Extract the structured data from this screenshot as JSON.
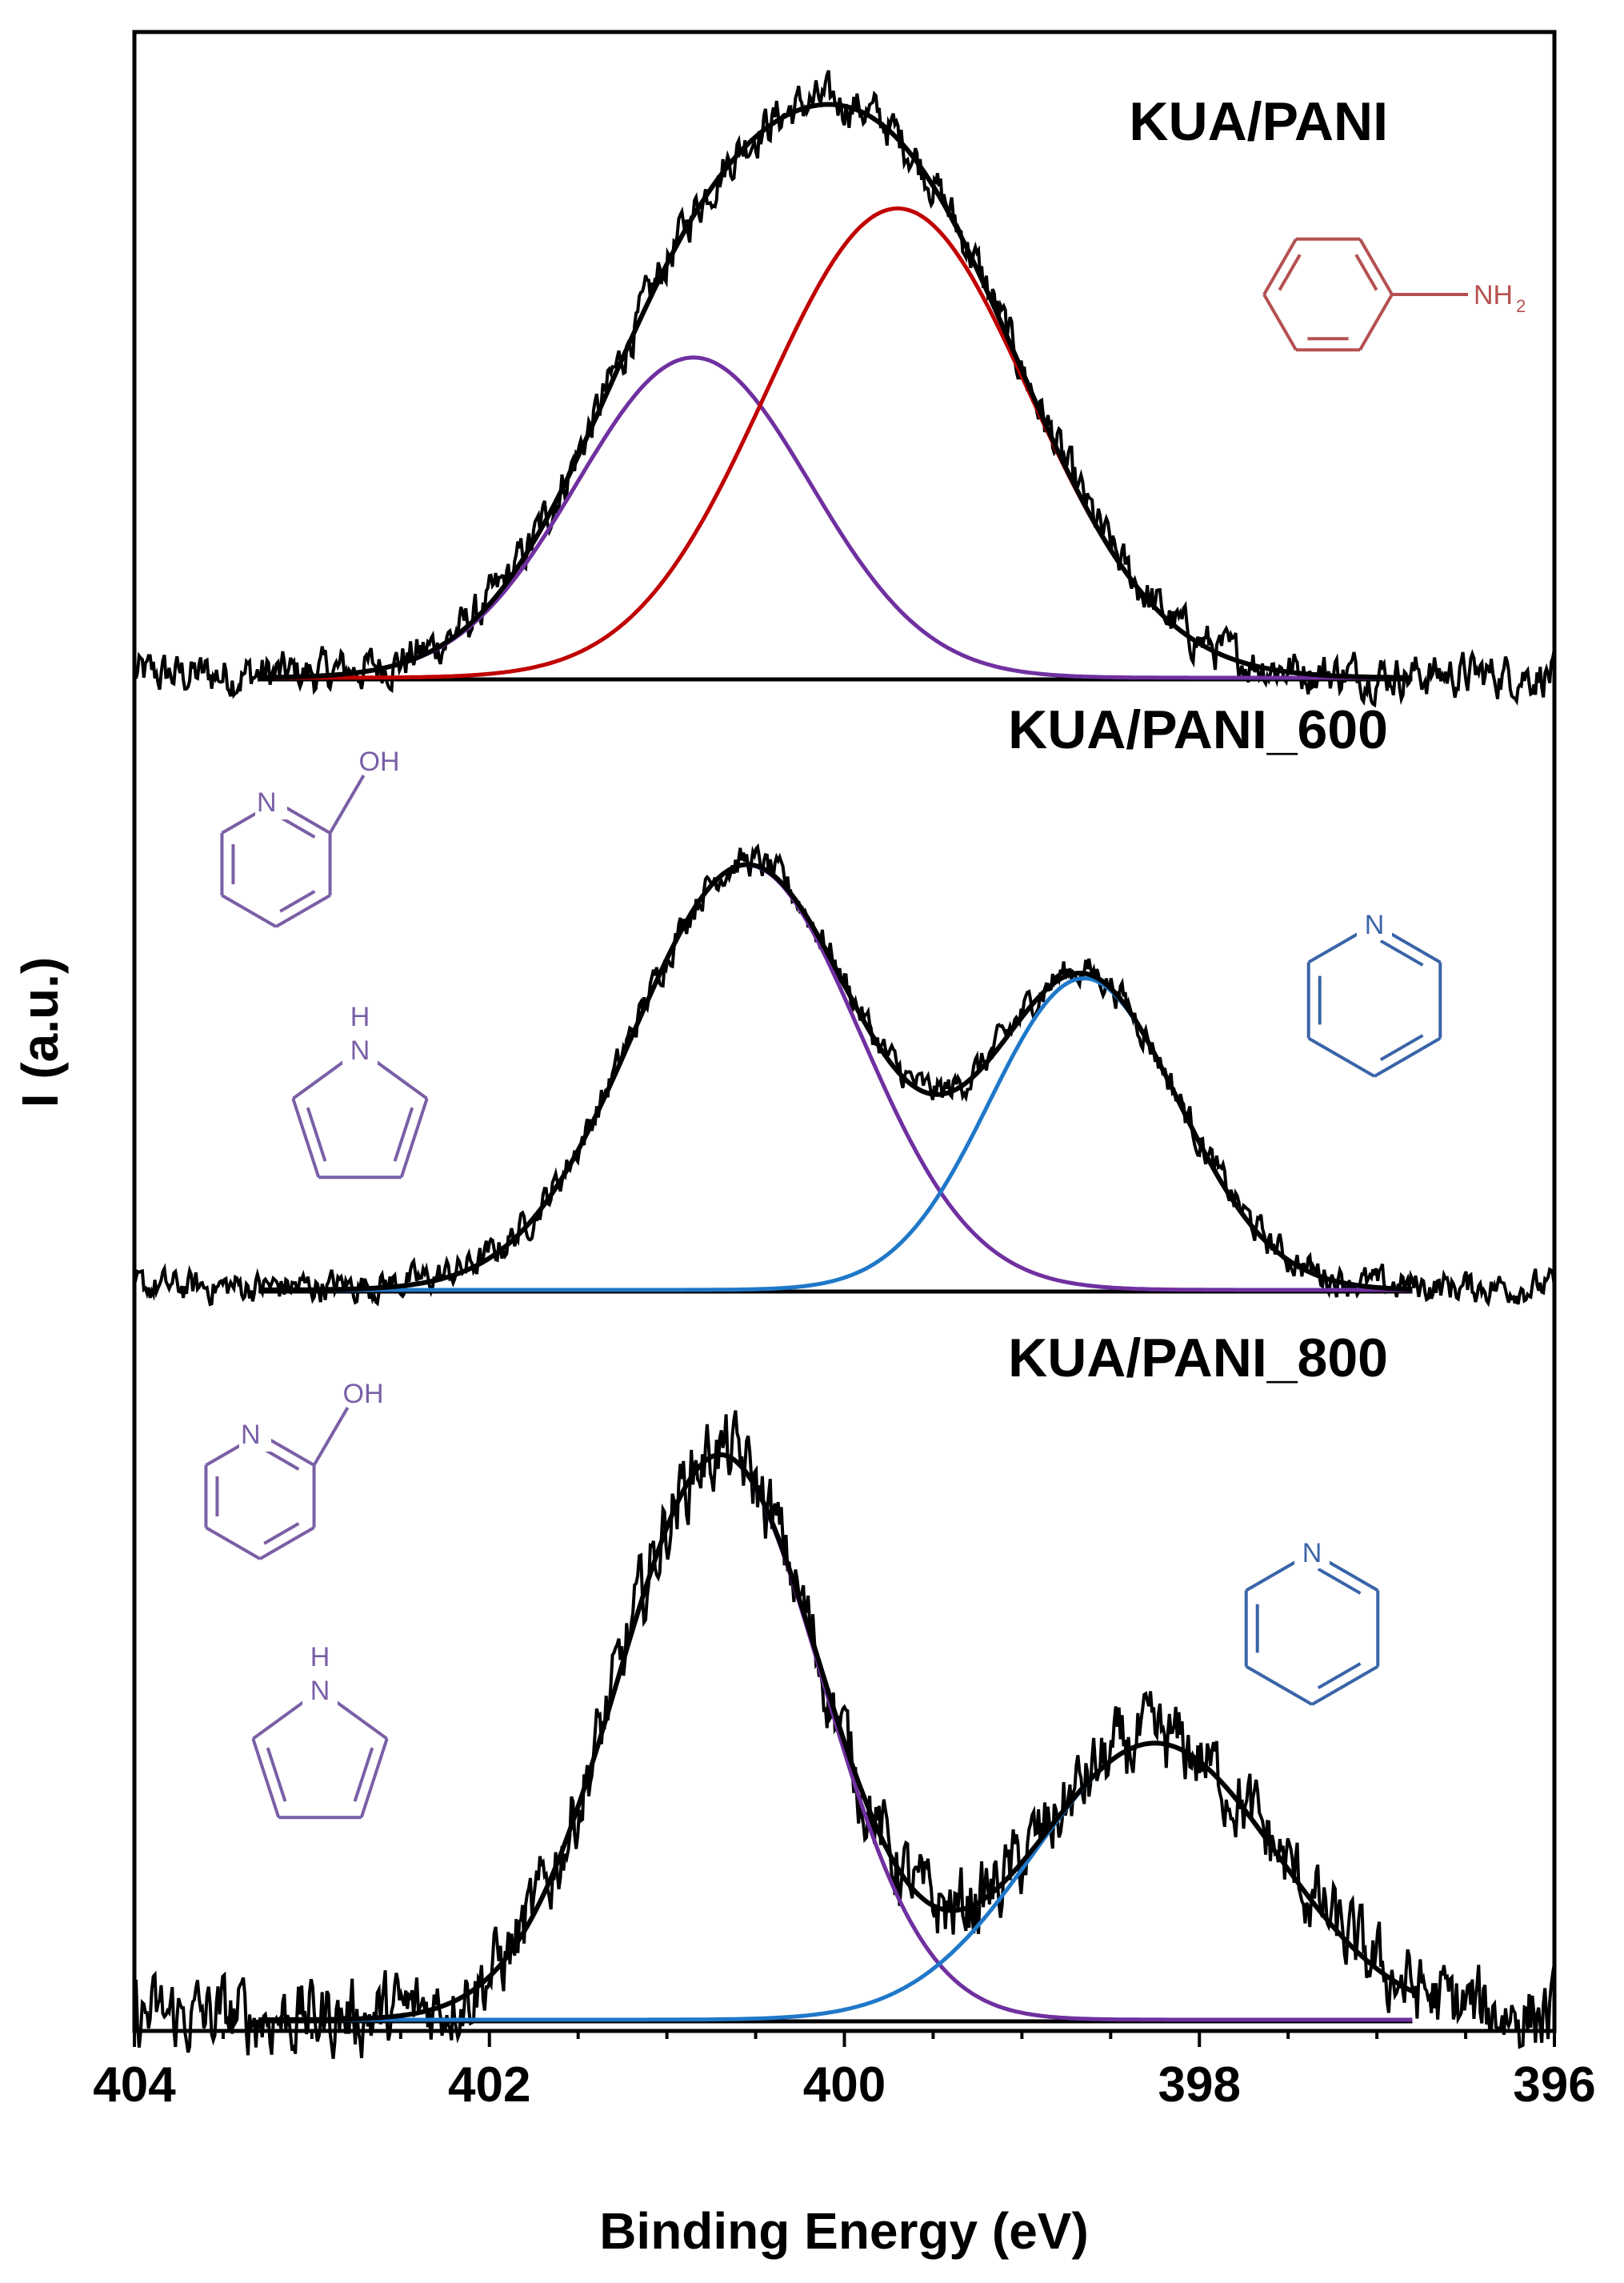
{
  "chart_data": {
    "type": "line",
    "xlabel": "Binding Energy (eV)",
    "ylabel": "I (a.u.)",
    "xlim": [
      404,
      396
    ],
    "x_ticks": [
      "404",
      "402",
      "400",
      "398",
      "396"
    ],
    "colors": {
      "raw": "#000000",
      "envelope": "#000000",
      "purple": "#7030a0",
      "red": "#c00000",
      "blue": "#1f78c8",
      "mol_red": "#b55050",
      "mol_purple": "#7a5fa6",
      "mol_blue": "#3a64a8"
    },
    "panels": [
      {
        "title": "KUA/PANI",
        "components": [
          {
            "name": "component 1",
            "color": "purple",
            "center": 400.85,
            "fwhm": 1.55,
            "height": 0.58
          },
          {
            "name": "component 2",
            "color": "red",
            "center": 399.7,
            "fwhm": 1.75,
            "height": 0.85
          }
        ],
        "raw_noise": 0.035,
        "molecules": [
          {
            "type": "aniline",
            "color": "mol_red",
            "label": "NH",
            "subscript": "2"
          }
        ]
      },
      {
        "title": "KUA/PANI_600",
        "components": [
          {
            "name": "component 1",
            "color": "purple",
            "center": 400.55,
            "fwhm": 1.5,
            "height": 0.9
          },
          {
            "name": "component 2",
            "color": "blue",
            "center": 398.65,
            "fwhm": 1.25,
            "height": 0.66
          }
        ],
        "raw_noise": 0.03,
        "molecules": [
          {
            "type": "hydroxypyridine",
            "color": "mol_purple",
            "n_label": "N",
            "oh_label": "OH"
          },
          {
            "type": "pyrrole",
            "color": "mol_purple",
            "h_label": "H",
            "n_label": "N"
          },
          {
            "type": "pyridine",
            "color": "mol_blue",
            "n_label": "N"
          }
        ]
      },
      {
        "title": "KUA/PANI_800",
        "components": [
          {
            "name": "component 1",
            "color": "purple",
            "center": 400.7,
            "fwhm": 1.35,
            "height": 0.98
          },
          {
            "name": "component 2",
            "color": "blue",
            "center": 398.25,
            "fwhm": 1.6,
            "height": 0.48
          }
        ],
        "raw_noise": 0.06,
        "molecules": [
          {
            "type": "hydroxypyridine",
            "color": "mol_purple",
            "n_label": "N",
            "oh_label": "OH"
          },
          {
            "type": "pyrrole",
            "color": "mol_purple",
            "h_label": "H",
            "n_label": "N"
          },
          {
            "type": "pyridine",
            "color": "mol_blue",
            "n_label": "N"
          }
        ]
      }
    ]
  }
}
